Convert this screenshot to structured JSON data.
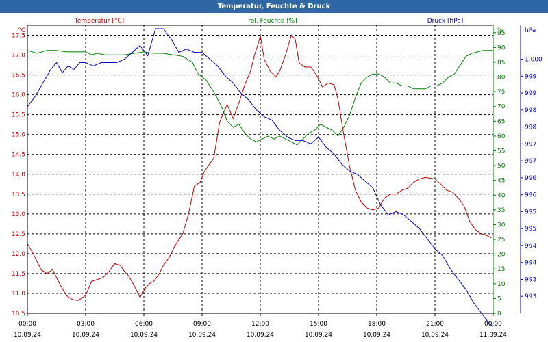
{
  "title": "Temperatur, Feuchte & Druck",
  "chart_data": {
    "type": "line",
    "title": "Temperatur, Feuchte & Druck",
    "x_ticks": [
      {
        "time": "00:00",
        "date": "10.09.24"
      },
      {
        "time": "03:00",
        "date": "10.09.24"
      },
      {
        "time": "06:00",
        "date": "10.09.24"
      },
      {
        "time": "09:00",
        "date": "10.09.24"
      },
      {
        "time": "12:00",
        "date": "10.09.24"
      },
      {
        "time": "15:00",
        "date": "10.09.24"
      },
      {
        "time": "18:00",
        "date": "10.09.24"
      },
      {
        "time": "21:00",
        "date": "10.09.24"
      },
      {
        "time": "00:00",
        "date": "11.09.24"
      }
    ],
    "xlim": [
      "10.09.24 00:00",
      "11.09.24 00:00"
    ],
    "grid": true,
    "axes": {
      "temperature": {
        "label": "Temperatur [°C]",
        "unit": "°C",
        "ylim": [
          10.5,
          17.75
        ],
        "ticks": [
          "10.5",
          "11.0",
          "11.5",
          "12.0",
          "12.5",
          "13.0",
          "13.5",
          "14.0",
          "14.5",
          "15.0",
          "15.5",
          "16.0",
          "16.5",
          "17.0",
          "17.5"
        ],
        "color": "#c00000"
      },
      "humidity": {
        "label": "rel. Feuchte [%]",
        "unit": "%",
        "ylim": [
          0,
          97.5
        ],
        "ticks": [
          "0",
          "5",
          "10",
          "15",
          "20",
          "25",
          "30",
          "35",
          "40",
          "45",
          "50",
          "55",
          "60",
          "65",
          "70",
          "75",
          "80",
          "85",
          "90",
          "95"
        ],
        "color": "#008000"
      },
      "pressure": {
        "label": "Druck [hPa]",
        "unit": "hPa",
        "ylim": [
          992.2,
          1000.7
        ],
        "ticks": [
          "993",
          "993",
          "994",
          "994",
          "995",
          "995",
          "996",
          "996",
          "997",
          "997",
          "998",
          "998",
          "999",
          "999",
          "1.000"
        ],
        "color": "#0000c0"
      }
    },
    "series": [
      {
        "name": "Temperatur [°C]",
        "axis": "temperature",
        "color": "#c00000",
        "x_hours": [
          0,
          0.3,
          0.7,
          1.0,
          1.3,
          1.6,
          2.0,
          2.3,
          2.6,
          3.0,
          3.3,
          3.6,
          3.9,
          4.2,
          4.5,
          4.8,
          5.0,
          5.2,
          5.5,
          5.8,
          6.1,
          6.3,
          6.5,
          6.8,
          7.0,
          7.3,
          7.6,
          8.0,
          8.3,
          8.6,
          8.9,
          9.1,
          9.3,
          9.6,
          9.9,
          10.1,
          10.3,
          10.6,
          10.9,
          11.2,
          11.5,
          11.7,
          11.9,
          12.0,
          12.2,
          12.5,
          12.8,
          13.0,
          13.3,
          13.6,
          13.8,
          14.0,
          14.3,
          14.6,
          14.9,
          15.2,
          15.5,
          15.8,
          16.0,
          16.3,
          16.6,
          16.9,
          17.2,
          17.5,
          17.8,
          18.1,
          18.4,
          18.7,
          19.0,
          19.3,
          19.6,
          19.9,
          20.2,
          20.5,
          20.8,
          21.0,
          21.3,
          21.6,
          21.9,
          22.2,
          22.5,
          22.8,
          23.1,
          23.4,
          23.7,
          23.9
        ],
        "values": [
          12.25,
          12.0,
          11.6,
          11.5,
          11.6,
          11.3,
          10.95,
          10.85,
          10.82,
          10.95,
          11.3,
          11.35,
          11.4,
          11.55,
          11.75,
          11.7,
          11.55,
          11.45,
          11.2,
          10.9,
          11.15,
          11.25,
          11.3,
          11.5,
          11.7,
          11.9,
          12.2,
          12.5,
          13.0,
          13.7,
          13.8,
          14.05,
          14.2,
          14.4,
          15.3,
          15.55,
          15.75,
          15.4,
          15.8,
          16.25,
          16.6,
          17.0,
          17.3,
          17.5,
          16.9,
          16.6,
          16.45,
          16.6,
          17.0,
          17.5,
          17.4,
          16.8,
          16.7,
          16.7,
          16.5,
          16.2,
          16.3,
          16.25,
          15.9,
          15.0,
          14.2,
          13.6,
          13.3,
          13.15,
          13.1,
          13.15,
          13.4,
          13.5,
          13.5,
          13.6,
          13.65,
          13.8,
          13.88,
          13.92,
          13.9,
          13.88,
          13.75,
          13.6,
          13.55,
          13.4,
          13.2,
          12.8,
          12.6,
          12.5,
          12.45,
          12.4
        ]
      },
      {
        "name": "rel. Feuchte [%]",
        "axis": "humidity",
        "color": "#008000",
        "x_hours": [
          0,
          0.5,
          1.0,
          1.5,
          2.0,
          2.5,
          3.0,
          3.3,
          3.6,
          4.0,
          4.5,
          5.0,
          5.5,
          6.0,
          6.5,
          7.0,
          7.5,
          8.0,
          8.5,
          8.8,
          9.2,
          9.6,
          10.0,
          10.3,
          10.6,
          10.9,
          11.2,
          11.5,
          11.8,
          12.1,
          12.4,
          12.7,
          13.0,
          13.3,
          13.6,
          13.9,
          14.2,
          14.5,
          14.8,
          15.1,
          15.4,
          15.7,
          16.0,
          16.3,
          16.6,
          16.9,
          17.2,
          17.5,
          17.8,
          18.1,
          18.4,
          18.7,
          19.0,
          19.3,
          19.6,
          19.9,
          20.2,
          20.5,
          20.8,
          21.1,
          21.4,
          21.7,
          22.0,
          22.3,
          22.6,
          22.9,
          23.2,
          23.5,
          23.8,
          24.0
        ],
        "values": [
          89,
          88,
          89,
          89,
          88.5,
          88.5,
          88.5,
          87.5,
          88,
          87.5,
          87.5,
          87.5,
          88,
          88.5,
          88,
          88,
          87.5,
          87,
          85,
          81,
          79,
          75,
          70,
          65,
          63,
          64,
          61,
          59,
          58,
          59,
          60,
          59,
          60,
          59,
          58,
          57,
          59,
          61,
          62,
          64,
          63,
          62,
          60,
          63,
          67,
          73,
          78,
          80,
          81,
          81,
          80,
          78,
          78,
          77,
          77,
          76,
          76,
          76,
          77,
          77,
          78,
          80,
          81,
          84,
          87,
          88,
          88.5,
          89,
          89,
          89
        ]
      },
      {
        "name": "Druck [hPa]",
        "axis": "pressure",
        "color": "#0000c0",
        "x_hours": [
          0,
          0.4,
          0.8,
          1.2,
          1.5,
          1.8,
          2.1,
          2.4,
          2.7,
          3.0,
          3.4,
          3.8,
          4.2,
          4.6,
          5.0,
          5.4,
          5.8,
          6.2,
          6.6,
          7.0,
          7.4,
          7.8,
          8.2,
          8.6,
          9.0,
          9.4,
          9.8,
          10.2,
          10.6,
          11.0,
          11.4,
          11.8,
          12.2,
          12.6,
          13.0,
          13.4,
          13.8,
          14.2,
          14.6,
          15.0,
          15.4,
          15.8,
          16.2,
          16.6,
          17.0,
          17.4,
          17.8,
          18.2,
          18.6,
          19.0,
          19.4,
          19.8,
          20.2,
          20.6,
          21.0,
          21.4,
          21.8,
          22.2,
          22.6,
          23.0,
          23.4,
          23.8,
          24.0
        ],
        "values": [
          998.3,
          998.6,
          999.0,
          999.4,
          999.6,
          999.3,
          999.5,
          999.4,
          999.6,
          999.6,
          999.5,
          999.6,
          999.6,
          999.6,
          999.7,
          999.9,
          1000.1,
          999.8,
          1000.6,
          1000.6,
          1000.3,
          999.9,
          1000.0,
          999.9,
          999.9,
          999.7,
          999.5,
          999.2,
          999.0,
          998.7,
          998.5,
          998.2,
          998.0,
          997.9,
          997.6,
          997.4,
          997.3,
          997.3,
          997.2,
          997.4,
          997.1,
          996.9,
          996.6,
          996.4,
          996.3,
          996.1,
          995.9,
          995.4,
          995.1,
          995.2,
          995.1,
          994.9,
          994.7,
          994.4,
          994.1,
          993.9,
          993.5,
          993.2,
          992.9,
          992.5,
          992.2,
          991.9,
          991.8
        ]
      }
    ]
  }
}
